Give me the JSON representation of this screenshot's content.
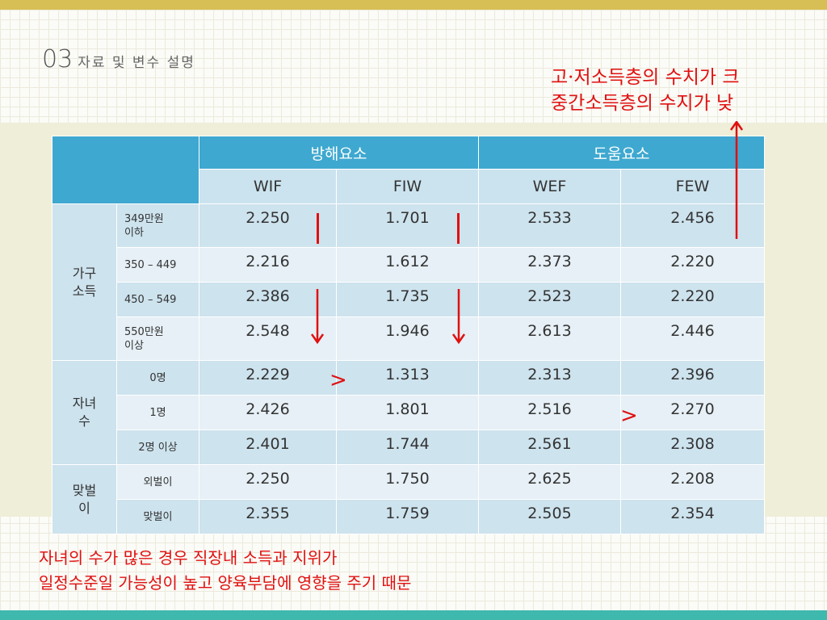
{
  "slide": {
    "number": "03",
    "title": "자료 및 변수 설명"
  },
  "notes": {
    "top_line1": "고·저소득층의 수치가 크",
    "top_line2": "중간소득층의 수지가 낮",
    "bottom_line1": "자녀의 수가 많은 경우 직장내 소득과 지위가",
    "bottom_line2": "일정수준일 가능성이 높고 양육부담에 영향을 주기 때문"
  },
  "table": {
    "groups": [
      "방해요소",
      "도움요소"
    ],
    "columns": [
      "WIF",
      "FIW",
      "WEF",
      "FEW"
    ],
    "sections": [
      {
        "label_lines": [
          "가구",
          "소득"
        ],
        "rows": [
          {
            "label_lines": [
              "349만원",
              "이하"
            ],
            "values": [
              "2.250",
              "1.701",
              "2.533",
              "2.456"
            ]
          },
          {
            "label_lines": [
              "350 – 449"
            ],
            "values": [
              "2.216",
              "1.612",
              "2.373",
              "2.220"
            ]
          },
          {
            "label_lines": [
              "450 – 549"
            ],
            "values": [
              "2.386",
              "1.735",
              "2.523",
              "2.220"
            ]
          },
          {
            "label_lines": [
              "550만원",
              "이상"
            ],
            "values": [
              "2.548",
              "1.946",
              "2.613",
              "2.446"
            ]
          }
        ]
      },
      {
        "label_lines": [
          "자녀",
          "수"
        ],
        "rows": [
          {
            "label_lines": [
              "0명"
            ],
            "values": [
              "2.229",
              "1.313",
              "2.313",
              "2.396"
            ]
          },
          {
            "label_lines": [
              "1명"
            ],
            "values": [
              "2.426",
              "1.801",
              "2.516",
              "2.270"
            ]
          },
          {
            "label_lines": [
              "2명 이상"
            ],
            "values": [
              "2.401",
              "1.744",
              "2.561",
              "2.308"
            ]
          }
        ]
      },
      {
        "label_lines": [
          "맞벌",
          "이"
        ],
        "rows": [
          {
            "label_lines": [
              "외벌이"
            ],
            "values": [
              "2.250",
              "1.750",
              "2.625",
              "2.208"
            ]
          },
          {
            "label_lines": [
              "맞벌이"
            ],
            "values": [
              "2.355",
              "1.759",
              "2.505",
              "2.354"
            ]
          }
        ]
      }
    ]
  },
  "annotations": {
    "greater_than": ">",
    "accent_color": "#e01010"
  },
  "colors": {
    "header": "#3ea8d0",
    "row_dark": "#cde3ee",
    "row_light": "#e6f0f6",
    "top_bar": "#d8bf55",
    "bottom_bar": "#3fb8ad"
  }
}
